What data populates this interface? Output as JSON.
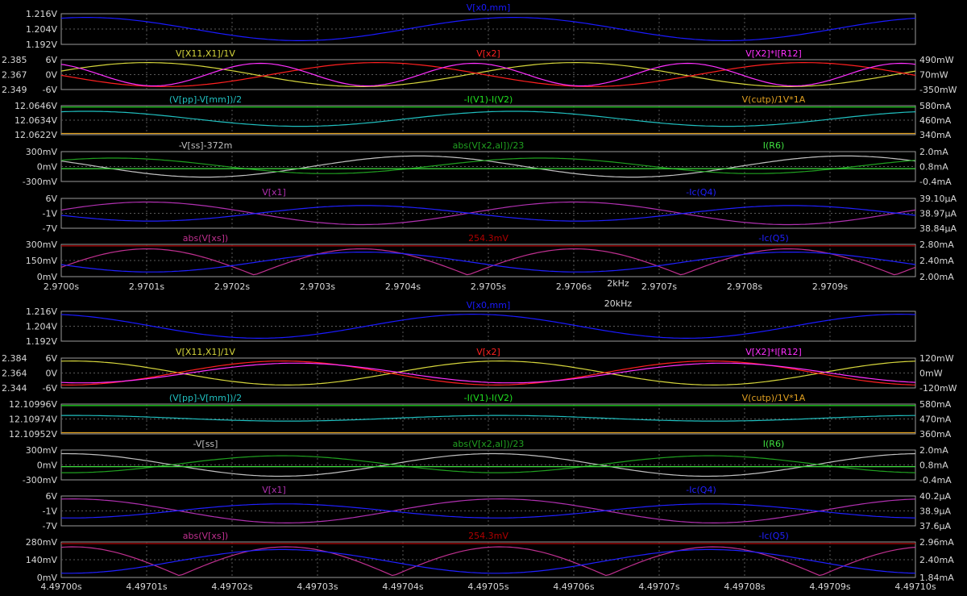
{
  "chart_data": [
    {
      "section_label": "2kHz",
      "x_ticks": [
        "2.9700s",
        "2.9701s",
        "2.9702s",
        "2.9703s",
        "2.9704s",
        "2.9705s",
        "2.9706s",
        "2.9707s",
        "2.9708s",
        "2.9709s"
      ],
      "panes": [
        {
          "left_ticks": [
            "1.216V",
            "1.204V",
            "1.192V"
          ],
          "right_ticks": [],
          "traces": [
            {
              "name": "V[x0,mm]",
              "color": "#1a1aff",
              "wave": "sin",
              "cycles": 2,
              "phase": 1.2,
              "amp": 0.8,
              "offset": 0
            }
          ]
        },
        {
          "outer_left_ticks": [
            "2.385",
            "2.367",
            "2.349"
          ],
          "left_ticks": [
            "6V",
            "0V",
            "-6V"
          ],
          "right_ticks": [
            "490mW",
            "70mW",
            "-350mW"
          ],
          "traces": [
            {
              "name": "V[X11,X1]/1V",
              "color": "#d6d63c",
              "wave": "sin",
              "cycles": 2,
              "phase": 0.3,
              "amp": 0.85,
              "offset": 0
            },
            {
              "name": "V[x2]",
              "color": "#ff2020",
              "wave": "sin",
              "cycles": 2,
              "phase": 3.2,
              "amp": 0.85,
              "offset": 0
            },
            {
              "name": "V[X2]*I[R12]",
              "color": "#ff30ff",
              "wave": "sin",
              "cycles": 4,
              "phase": 2.0,
              "amp": 0.8,
              "offset": 0
            }
          ]
        },
        {
          "left_ticks": [
            "12.0646V",
            "12.0634V",
            "12.0622V"
          ],
          "right_ticks": [
            "580mA",
            "460mA",
            "340mA"
          ],
          "traces": [
            {
              "name": "(V[pp]-V[mm])/2",
              "color": "#20c0c0",
              "wave": "sin",
              "cycles": 2,
              "phase": 1.2,
              "amp": 0.55,
              "offset": 0.1
            },
            {
              "name": "-I(V1)-I(V2)",
              "color": "#20e020",
              "wave": "flat",
              "cycles": 0,
              "phase": 0,
              "amp": 0,
              "offset": 0.95
            },
            {
              "name": "V(cutp)/1V*1A",
              "color": "#e0a020",
              "wave": "flat",
              "cycles": 0,
              "phase": 0,
              "amp": 0,
              "offset": -0.97
            }
          ]
        },
        {
          "left_ticks": [
            "300mV",
            "0mV",
            "-300mV"
          ],
          "right_ticks": [
            "2.0mA",
            "0.8mA",
            "-0.4mA"
          ],
          "traces": [
            {
              "name": "-V[ss]-372m",
              "color": "#c0c0c0",
              "wave": "sin",
              "cycles": 2,
              "phase": 2.6,
              "amp": 0.75,
              "offset": 0
            },
            {
              "name": "abs(V[x2,al])/23",
              "color": "#20a020",
              "wave": "sin",
              "cycles": 2,
              "phase": 0.8,
              "amp": 0.55,
              "offset": 0.05
            },
            {
              "name": "I(R6)",
              "color": "#40e040",
              "wave": "flat",
              "cycles": 0,
              "phase": 0,
              "amp": 0,
              "offset": -0.15
            }
          ]
        },
        {
          "left_ticks": [
            "6V",
            "-1V",
            "-7V"
          ],
          "right_ticks": [
            "39.10µA",
            "38.97µA",
            "38.84µA"
          ],
          "traces": [
            {
              "name": "V[x1]",
              "color": "#b030b0",
              "wave": "sin",
              "cycles": 2,
              "phase": 0.3,
              "amp": 0.8,
              "offset": 0
            },
            {
              "name": "-Ic(Q4)",
              "color": "#2020ff",
              "wave": "sin",
              "cycles": 2,
              "phase": 3.4,
              "amp": 0.55,
              "offset": 0
            }
          ]
        },
        {
          "left_ticks": [
            "300mV",
            "150mV",
            "0mV"
          ],
          "right_ticks": [
            "2.80mA",
            "2.40mA",
            "2.00mA"
          ],
          "traces": [
            {
              "name": "abs(V[xs])",
              "color": "#c03090",
              "wave": "abs",
              "cycles": 2,
              "phase": 0.3,
              "amp": 0.9,
              "offset": -0.95
            },
            {
              "name": "254.3mV",
              "color": "#b00000",
              "wave": "flat",
              "cycles": 0,
              "phase": 0,
              "amp": 0,
              "offset": 0.95
            },
            {
              "name": "-Ic(Q5)",
              "color": "#2020ff",
              "wave": "sin",
              "cycles": 2,
              "phase": 3.4,
              "amp": 0.65,
              "offset": -0.1
            }
          ]
        }
      ]
    },
    {
      "section_label": "20kHz",
      "x_ticks": [
        "4.49700s",
        "4.49701s",
        "4.49702s",
        "4.49703s",
        "4.49704s",
        "4.49705s",
        "4.49706s",
        "4.49707s",
        "4.49708s",
        "4.49709s",
        "4.49710s"
      ],
      "panes": [
        {
          "left_ticks": [
            "1.216V",
            "1.204V",
            "1.192V"
          ],
          "right_ticks": [],
          "traces": [
            {
              "name": "V[x0,mm]",
              "color": "#1a1aff",
              "wave": "sin",
              "cycles": 2,
              "phase": 1.8,
              "amp": 0.85,
              "offset": 0
            }
          ]
        },
        {
          "outer_left_ticks": [
            "2.384",
            "2.364",
            "2.344"
          ],
          "left_ticks": [
            "6V",
            "0V",
            "-6V"
          ],
          "right_ticks": [
            "120mW",
            "0mW",
            "-120mW"
          ],
          "traces": [
            {
              "name": "V[X11,X1]/1V",
              "color": "#d6d63c",
              "wave": "sin",
              "cycles": 2,
              "phase": 1.4,
              "amp": 0.85,
              "offset": 0
            },
            {
              "name": "V[x2]",
              "color": "#ff2020",
              "wave": "sin",
              "cycles": 2,
              "phase": 4.6,
              "amp": 0.85,
              "offset": 0
            },
            {
              "name": "V[X2]*I[R12]",
              "color": "#ff30ff",
              "wave": "sin",
              "cycles": 2,
              "phase": 4.4,
              "amp": 0.7,
              "offset": 0
            }
          ]
        },
        {
          "left_ticks": [
            "12.10996V",
            "12.10974V",
            "12.10952V"
          ],
          "right_ticks": [
            "580mA",
            "470mA",
            "360mA"
          ],
          "traces": [
            {
              "name": "(V[pp]-V[mm])/2",
              "color": "#20c0c0",
              "wave": "sin",
              "cycles": 2,
              "phase": 1.4,
              "amp": 0.2,
              "offset": 0.05
            },
            {
              "name": "-I(V1)-I(V2)",
              "color": "#20e020",
              "wave": "flat",
              "cycles": 0,
              "phase": 0,
              "amp": 0,
              "offset": 0.95
            },
            {
              "name": "V(cutp)/1V*1A",
              "color": "#e0a020",
              "wave": "flat",
              "cycles": 0,
              "phase": 0,
              "amp": 0,
              "offset": -0.97
            }
          ]
        },
        {
          "left_ticks": [
            "300mV",
            "0mV",
            "-300mV"
          ],
          "right_ticks": [
            "2.0mA",
            "0.8mA",
            "-0.4mA"
          ],
          "traces": [
            {
              "name": "-V[ss]",
              "color": "#c0c0c0",
              "wave": "sin",
              "cycles": 2,
              "phase": 1.5,
              "amp": 0.8,
              "offset": 0
            },
            {
              "name": "abs(V[x2,al])/23",
              "color": "#20a020",
              "wave": "sin",
              "cycles": 2,
              "phase": 4.6,
              "amp": 0.6,
              "offset": 0.05
            },
            {
              "name": "I(R6)",
              "color": "#40e040",
              "wave": "flat",
              "cycles": 0,
              "phase": 0,
              "amp": 0,
              "offset": -0.12
            }
          ]
        },
        {
          "left_ticks": [
            "6V",
            "-1V",
            "-7V"
          ],
          "right_ticks": [
            "40.2µA",
            "38.9µA",
            "37.6µA"
          ],
          "traces": [
            {
              "name": "V[x1]",
              "color": "#b030b0",
              "wave": "sin",
              "cycles": 2,
              "phase": 1.4,
              "amp": 0.85,
              "offset": 0
            },
            {
              "name": "-Ic(Q4)",
              "color": "#2020ff",
              "wave": "sin",
              "cycles": 2,
              "phase": 4.6,
              "amp": 0.5,
              "offset": 0
            }
          ]
        },
        {
          "left_ticks": [
            "280mV",
            "140mV",
            "0mV"
          ],
          "right_ticks": [
            "2.96mA",
            "2.40mA",
            "1.84mA"
          ],
          "traces": [
            {
              "name": "abs(V[xs])",
              "color": "#c03090",
              "wave": "abs",
              "cycles": 2,
              "phase": 1.4,
              "amp": 0.9,
              "offset": -0.95
            },
            {
              "name": "254.3mV",
              "color": "#b00000",
              "wave": "flat",
              "cycles": 0,
              "phase": 0,
              "amp": 0,
              "offset": 0.95
            },
            {
              "name": "-Ic(Q5)",
              "color": "#2020ff",
              "wave": "sin",
              "cycles": 2,
              "phase": 4.6,
              "amp": 0.7,
              "offset": -0.1
            }
          ]
        }
      ]
    }
  ]
}
